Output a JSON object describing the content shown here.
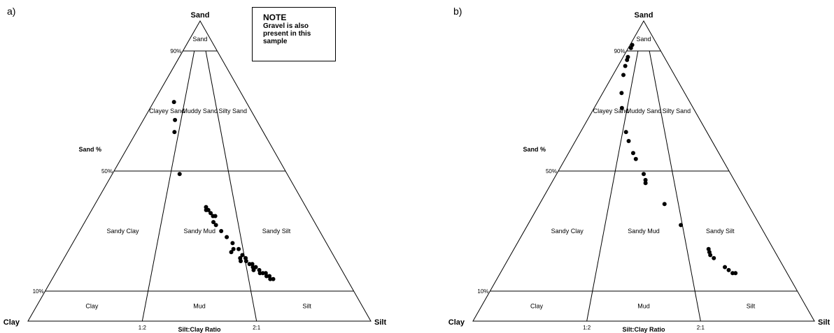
{
  "chart_data": [
    {
      "type": "scatter",
      "panel_label": "a)",
      "corner_labels": {
        "top": "Sand",
        "left": "Clay",
        "right": "Silt"
      },
      "left_axis_title": "Sand %",
      "left_axis_ticks": [
        "90%",
        "50%",
        "10%"
      ],
      "base_axis_title": "Silt:Clay Ratio",
      "base_axis_ticks": [
        "1:2",
        "2:1"
      ],
      "field_labels": [
        "Sand",
        "Clayey Sand",
        "Muddy Sand",
        "Silty Sand",
        "Sandy Clay",
        "Sandy Mud",
        "Sandy Silt",
        "Clay",
        "Mud",
        "Silt"
      ],
      "note": {
        "title": "NOTE",
        "text": "Gravel is also present in this sample"
      },
      "points_sand_silt_pct": [
        [
          73,
          22
        ],
        [
          67,
          28
        ],
        [
          63,
          30
        ],
        [
          49,
          38.5
        ],
        [
          38,
          53
        ],
        [
          37,
          53
        ],
        [
          37,
          54
        ],
        [
          36,
          55
        ],
        [
          35,
          56
        ],
        [
          35,
          57
        ],
        [
          33,
          56
        ],
        [
          32,
          57
        ],
        [
          30,
          59
        ],
        [
          28,
          61
        ],
        [
          26,
          63
        ],
        [
          24,
          63
        ],
        [
          24,
          65
        ],
        [
          23,
          62
        ],
        [
          22,
          66
        ],
        [
          21,
          65
        ],
        [
          21,
          67
        ],
        [
          20,
          65
        ],
        [
          20,
          67
        ],
        [
          19,
          68
        ],
        [
          19,
          69
        ],
        [
          18,
          69
        ],
        [
          18,
          70
        ],
        [
          17,
          71
        ],
        [
          17,
          69
        ],
        [
          16,
          71
        ],
        [
          16,
          72
        ],
        [
          16,
          73
        ],
        [
          15,
          73
        ],
        [
          15,
          74
        ],
        [
          14,
          74
        ],
        [
          14,
          75
        ]
      ]
    },
    {
      "type": "scatter",
      "panel_label": "b)",
      "corner_labels": {
        "top": "Sand",
        "left": "Clay",
        "right": "Silt"
      },
      "left_axis_title": "Sand %",
      "left_axis_ticks": [
        "90%",
        "50%",
        "10%"
      ],
      "base_axis_title": "Silt:Clay Ratio",
      "base_axis_ticks": [
        "1:2",
        "2:1"
      ],
      "field_labels": [
        "Sand",
        "Clayey Sand",
        "Muddy Sand",
        "Silty Sand",
        "Sandy Clay",
        "Sandy Mud",
        "Sandy Silt",
        "Clay",
        "Mud",
        "Silt"
      ],
      "points_sand_silt_pct": [
        [
          92,
          8
        ],
        [
          91,
          8.5
        ],
        [
          88,
          11.5
        ],
        [
          87,
          12.5
        ],
        [
          85,
          14
        ],
        [
          82,
          17
        ],
        [
          76,
          23
        ],
        [
          71,
          28
        ],
        [
          63,
          36
        ],
        [
          60,
          39
        ],
        [
          56,
          43
        ],
        [
          54,
          45
        ],
        [
          49,
          50
        ],
        [
          47,
          51
        ],
        [
          46,
          51
        ],
        [
          39,
          60
        ],
        [
          32,
          66
        ],
        [
          24,
          75
        ],
        [
          23,
          75
        ],
        [
          22,
          75
        ],
        [
          21,
          76
        ],
        [
          18,
          79
        ],
        [
          17,
          80
        ],
        [
          16,
          81
        ],
        [
          16,
          82
        ]
      ]
    }
  ]
}
